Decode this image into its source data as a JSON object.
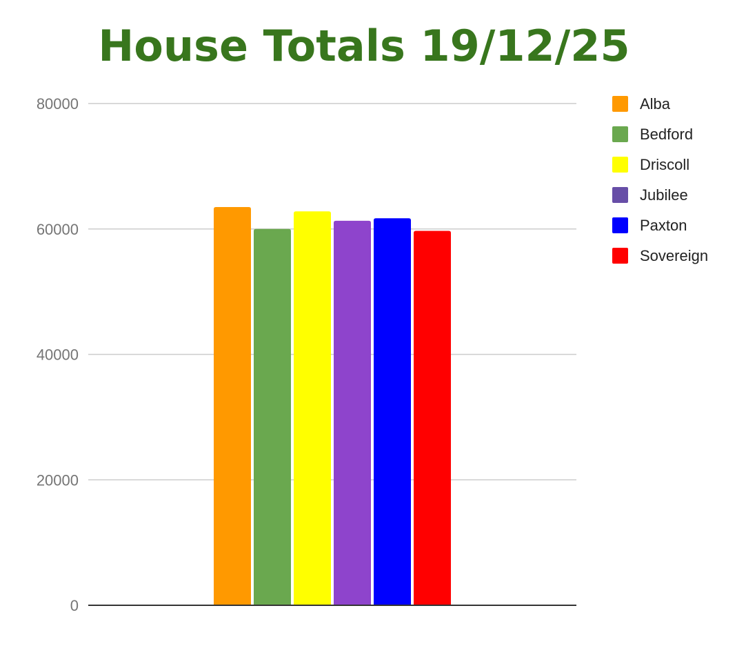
{
  "chart_data": {
    "type": "bar",
    "title": "House Totals 19/12/25",
    "xlabel": "",
    "ylabel": "",
    "ylim": [
      0,
      80000
    ],
    "yticks": [
      0,
      20000,
      40000,
      60000,
      80000
    ],
    "grid": true,
    "legend_position": "right",
    "series": [
      {
        "name": "Alba",
        "value": 63500,
        "color": "#ff9900"
      },
      {
        "name": "Bedford",
        "value": 60000,
        "color": "#6aa84f"
      },
      {
        "name": "Driscoll",
        "value": 62800,
        "color": "#ffff00"
      },
      {
        "name": "Jubilee",
        "value": 61300,
        "color": "#8e44cc"
      },
      {
        "name": "Paxton",
        "value": 61700,
        "color": "#0000ff"
      },
      {
        "name": "Sovereign",
        "value": 59700,
        "color": "#ff0000"
      }
    ],
    "title_color": "#38761d",
    "legend_swatch_colors": [
      "#ff9900",
      "#6aa84f",
      "#ffff00",
      "#674ea7",
      "#0000ff",
      "#ff0000"
    ]
  }
}
